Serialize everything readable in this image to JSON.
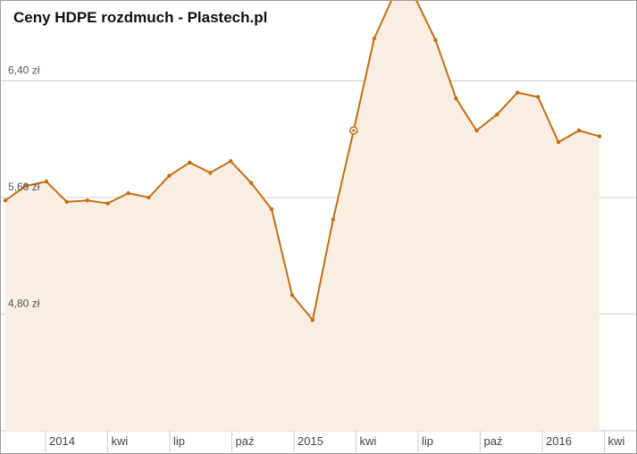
{
  "title": "Ceny HDPE rozdmuch - Plastech.pl",
  "colors": {
    "line": "#c36e14",
    "area": "#faede2",
    "grid": "#cccccc"
  },
  "chart_data": {
    "type": "area",
    "title": "Ceny HDPE rozdmuch - Plastech.pl",
    "xlabel": "",
    "ylabel": "",
    "ylim": [
      4.0,
      6.9
    ],
    "yticks": [
      {
        "value": 4.8,
        "label": "4,80 zł"
      },
      {
        "value": 5.6,
        "label": "5,60 zł"
      },
      {
        "value": 6.4,
        "label": "6,40 zł"
      }
    ],
    "xticks": [
      "2014",
      "kwi",
      "lip",
      "paź",
      "2015",
      "kwi",
      "lip",
      "paź",
      "2016",
      "kwi"
    ],
    "grid": true,
    "legend": "none",
    "highlighted_index": 17,
    "values": [
      5.58,
      5.68,
      5.71,
      5.57,
      5.58,
      5.56,
      5.63,
      5.6,
      5.75,
      5.84,
      5.77,
      5.85,
      5.7,
      5.52,
      4.93,
      4.76,
      5.45,
      6.06,
      6.69,
      7.0,
      6.97,
      6.68,
      6.28,
      6.06,
      6.17,
      6.32,
      6.29,
      5.98,
      6.06,
      6.02
    ]
  }
}
